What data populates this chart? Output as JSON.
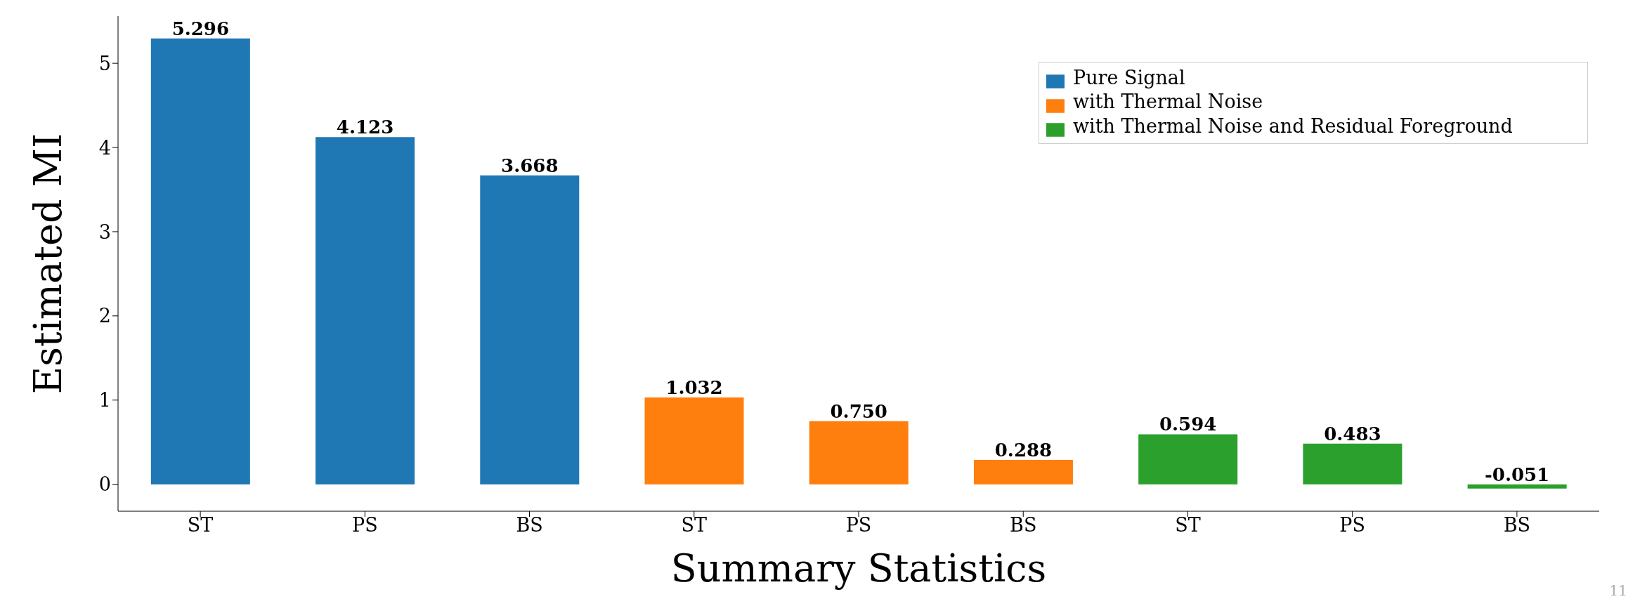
{
  "chart_data": {
    "type": "bar",
    "xlabel": "Summary Statistics",
    "ylabel": "Estimated MI",
    "categories": [
      "ST",
      "PS",
      "BS",
      "ST",
      "PS",
      "BS",
      "ST",
      "PS",
      "BS"
    ],
    "series": [
      {
        "name": "Pure Signal",
        "color": "#1f77b4",
        "values": [
          5.296,
          4.123,
          3.668,
          null,
          null,
          null,
          null,
          null,
          null
        ],
        "value_labels": [
          "5.296",
          "4.123",
          "3.668",
          null,
          null,
          null,
          null,
          null,
          null
        ]
      },
      {
        "name": "with Thermal Noise",
        "color": "#ff7f0e",
        "values": [
          null,
          null,
          null,
          1.032,
          0.75,
          0.288,
          null,
          null,
          null
        ],
        "value_labels": [
          null,
          null,
          null,
          "1.032",
          "0.750",
          "0.288",
          null,
          null,
          null
        ]
      },
      {
        "name": "with Thermal Noise and Residual Foreground",
        "color": "#2ca02c",
        "values": [
          null,
          null,
          null,
          null,
          null,
          null,
          0.594,
          0.483,
          -0.051
        ],
        "value_labels": [
          null,
          null,
          null,
          null,
          null,
          null,
          "0.594",
          "0.483",
          "-0.051"
        ]
      }
    ],
    "ylim": [
      -0.32,
      5.56
    ],
    "yticks": [
      0,
      1,
      2,
      3,
      4,
      5
    ],
    "grid": false,
    "legend": "top right",
    "annotations": [
      "11"
    ]
  }
}
